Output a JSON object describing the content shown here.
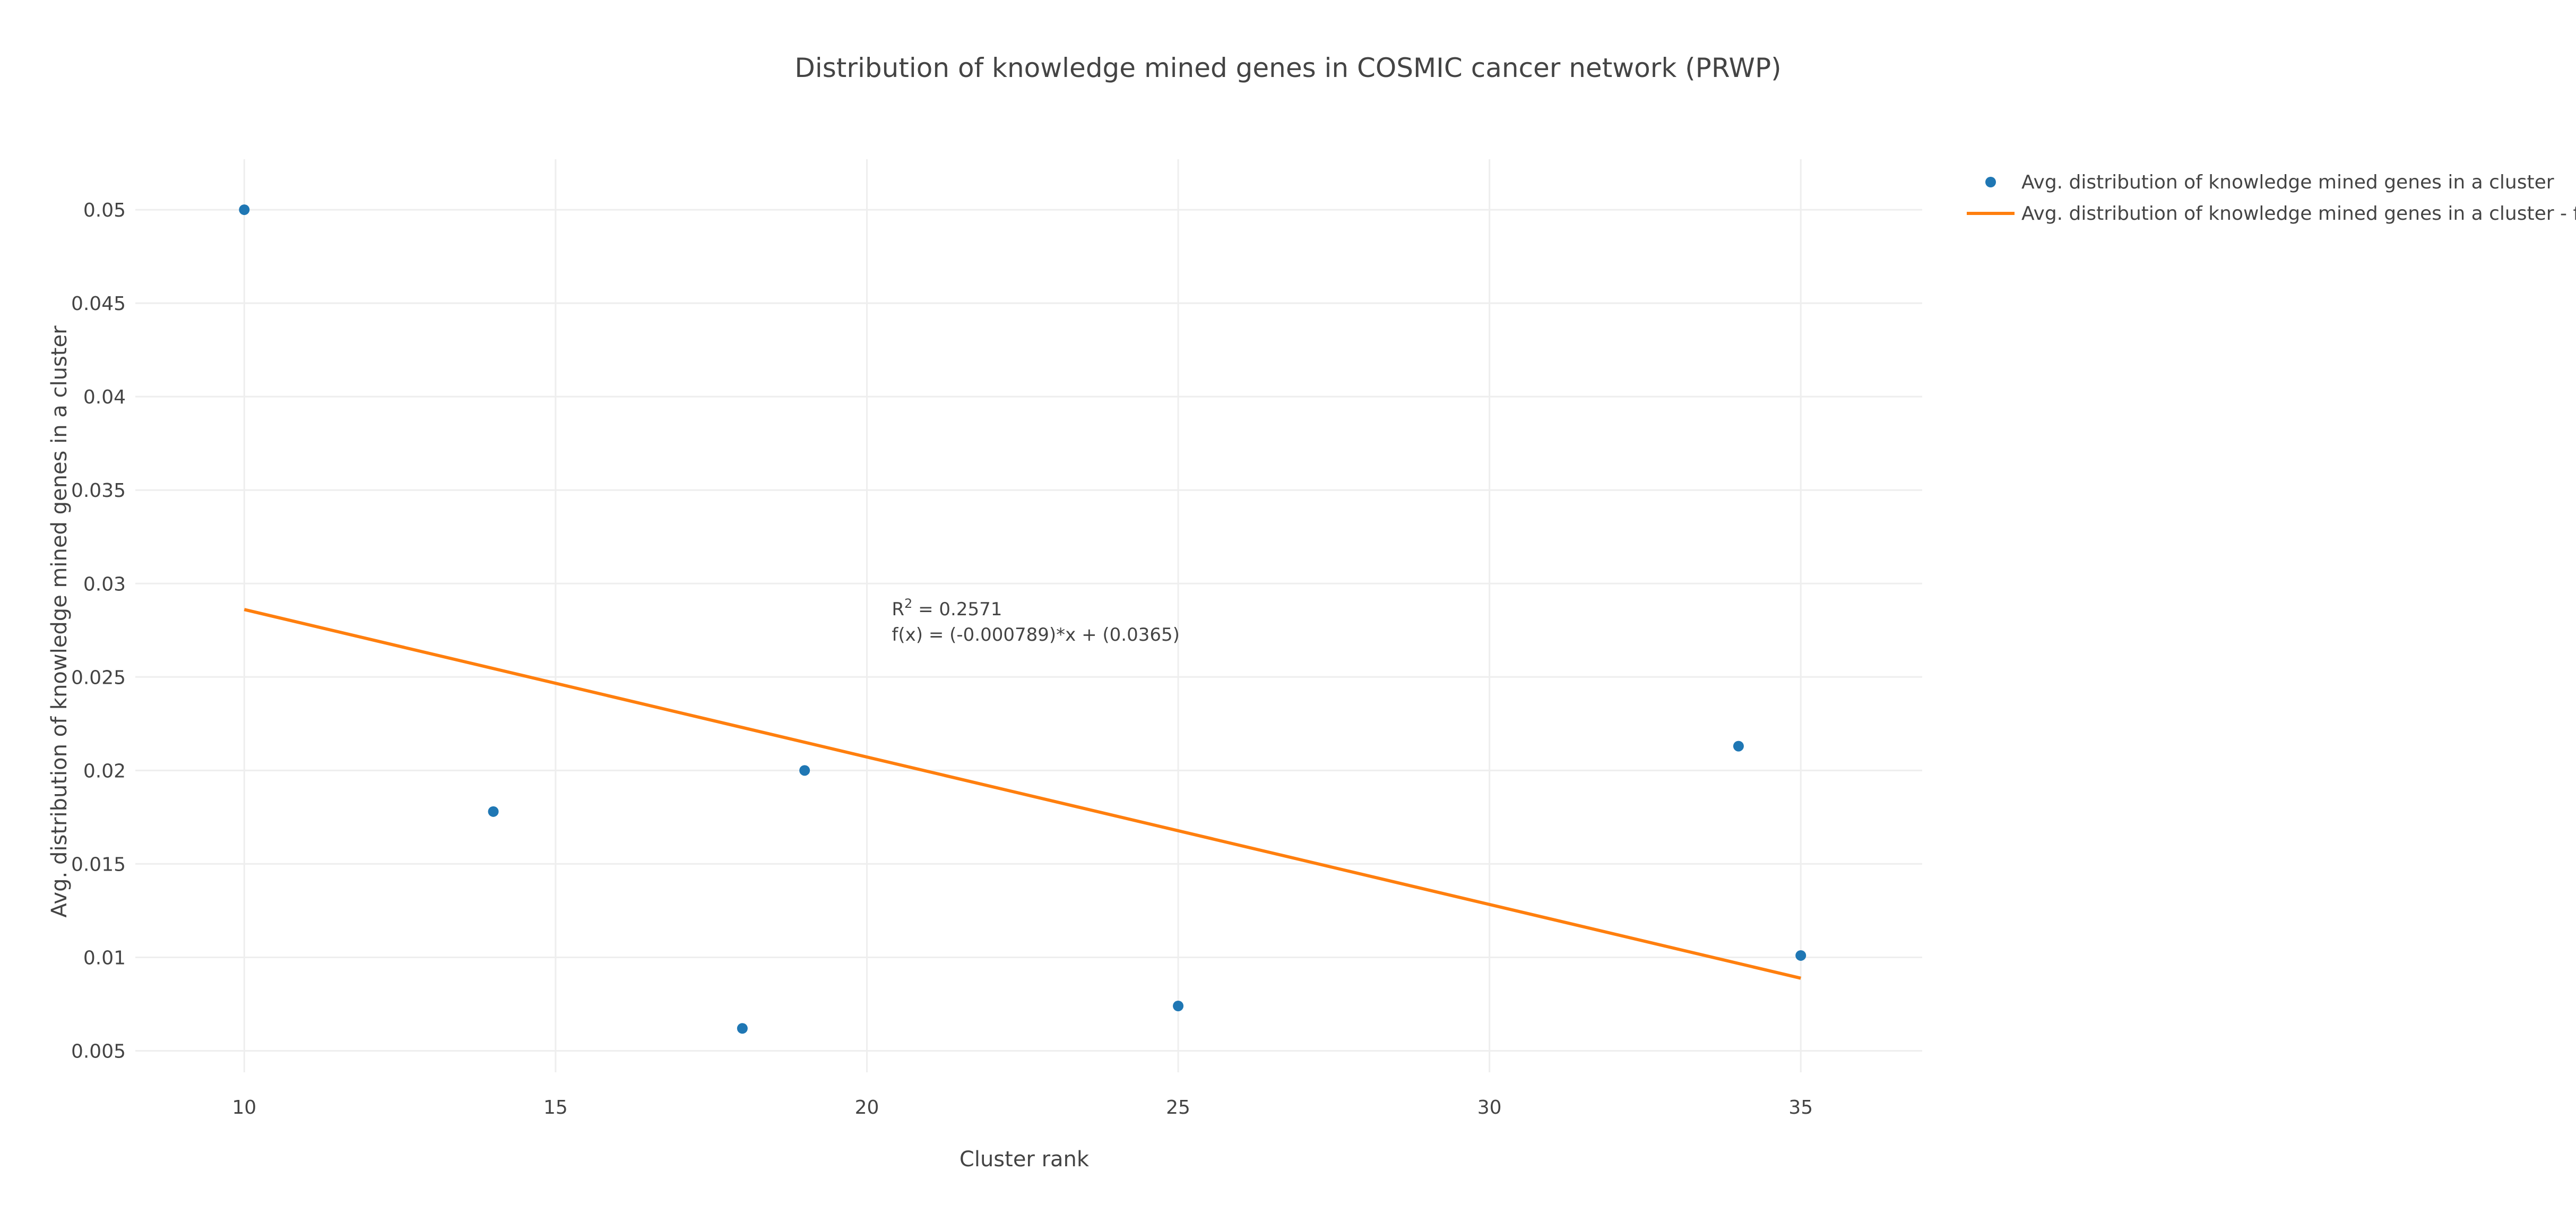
{
  "chart_data": {
    "type": "scatter",
    "title": "Distribution of knowledge mined genes in COSMIC cancer network (PRWP)",
    "xlabel": "Cluster rank",
    "ylabel": "Avg. distribution of knowledge mined genes in a cluster",
    "xlim": [
      8.25,
      36.95
    ],
    "ylim": [
      0.00385,
      0.0527
    ],
    "x_ticks": [
      10,
      15,
      20,
      25,
      30,
      35
    ],
    "x_tick_labels": [
      "10",
      "15",
      "20",
      "25",
      "30",
      "35"
    ],
    "y_ticks": [
      0.005,
      0.01,
      0.015,
      0.02,
      0.025,
      0.03,
      0.035,
      0.04,
      0.045,
      0.05
    ],
    "y_tick_labels": [
      "0.005",
      "0.01",
      "0.015",
      "0.02",
      "0.025",
      "0.03",
      "0.035",
      "0.04",
      "0.045",
      "0.05"
    ],
    "grid": true,
    "legend_position": "top-right",
    "series": [
      {
        "name": "Avg. distribution of knowledge mined genes in a cluster",
        "kind": "markers",
        "color": "#1f77b4",
        "points": [
          {
            "x": 10,
            "y": 0.05
          },
          {
            "x": 14,
            "y": 0.0178
          },
          {
            "x": 18,
            "y": 0.0062
          },
          {
            "x": 19,
            "y": 0.02
          },
          {
            "x": 25,
            "y": 0.0074
          },
          {
            "x": 34,
            "y": 0.0213
          },
          {
            "x": 35,
            "y": 0.0101
          }
        ]
      },
      {
        "name": "Avg. distribution of knowledge mined genes in a cluster - fit",
        "kind": "line",
        "color": "#ff7f0e",
        "points": [
          {
            "x": 10,
            "y": 0.02861
          },
          {
            "x": 35,
            "y": 0.008885
          }
        ]
      }
    ],
    "annotation": {
      "r_prefix": "R",
      "r_sup": "2",
      "r_value": " = 0.2571",
      "formula": "f(x) = (-0.000789)*x + (0.0365)",
      "x": 20.4,
      "y": 0.0283
    }
  }
}
